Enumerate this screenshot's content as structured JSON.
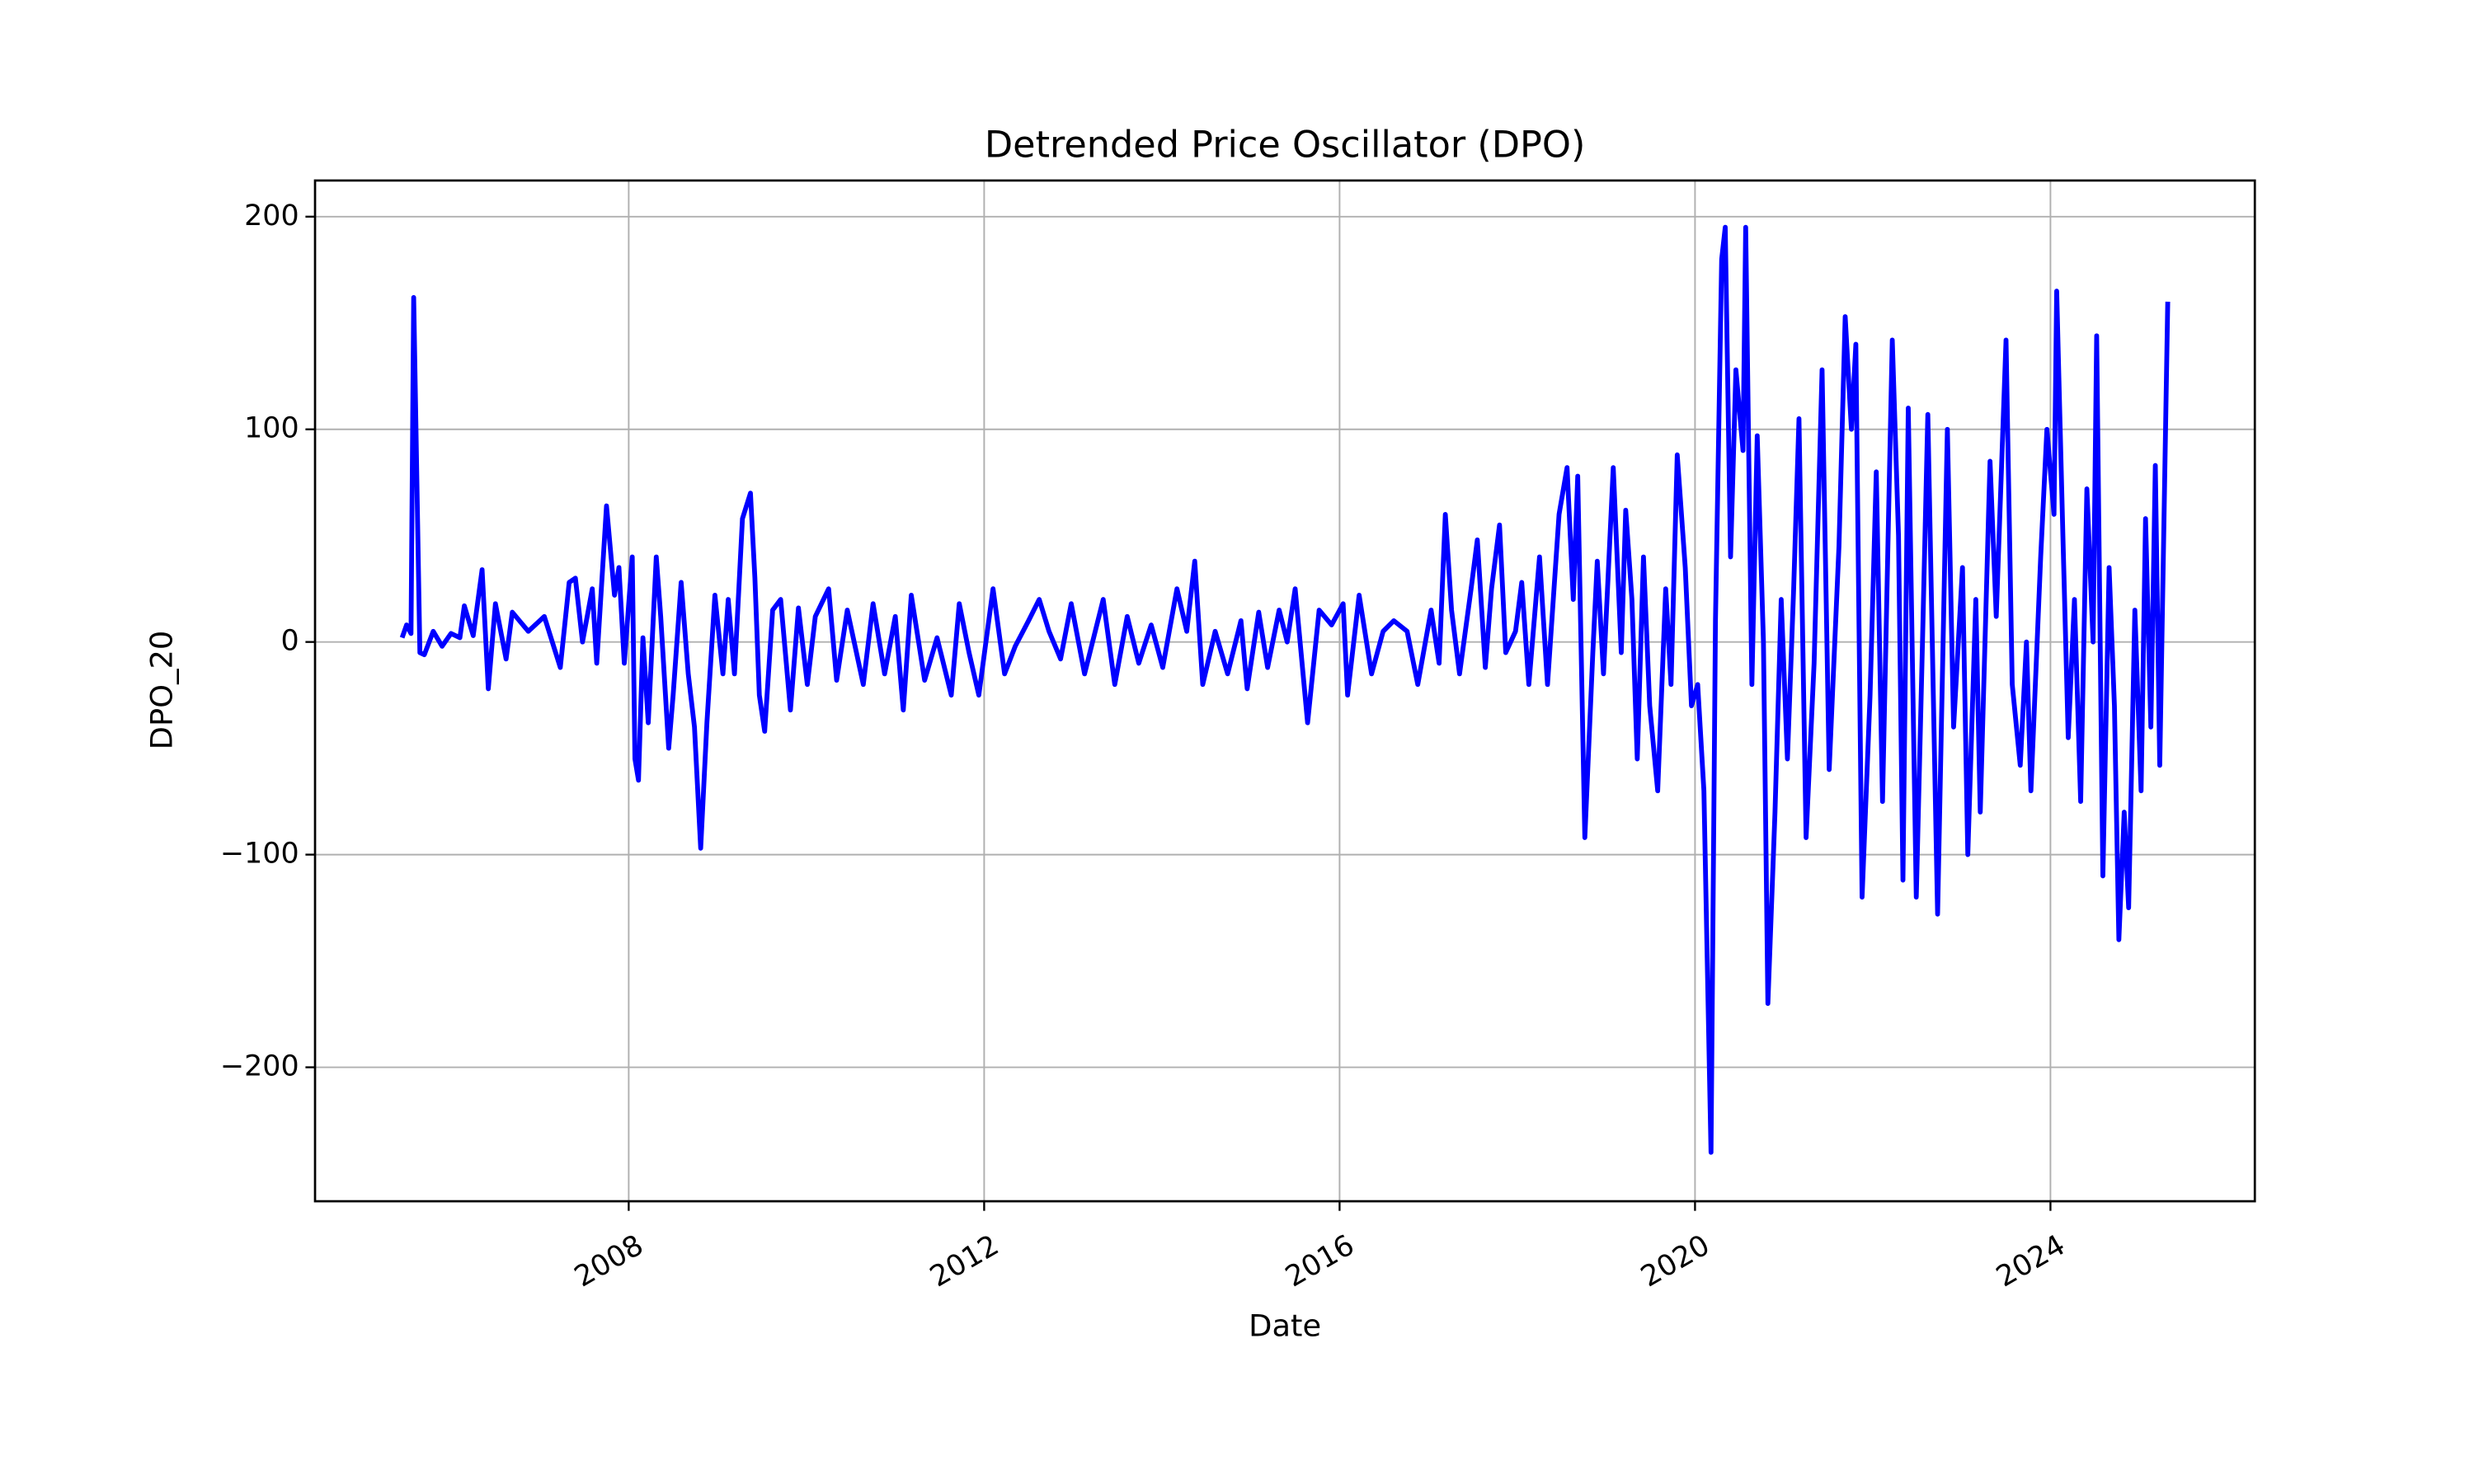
{
  "chart_data": {
    "type": "line",
    "title": "Detrended Price Oscillator (DPO)",
    "xlabel": "Date",
    "ylabel": "DPO_20",
    "xlim": [
      2004.47,
      2026.3
    ],
    "ylim": [
      -263,
      217
    ],
    "xticks": [
      2008,
      2012,
      2016,
      2020,
      2024
    ],
    "yticks": [
      {
        "value": -200,
        "label": "−200"
      },
      {
        "value": -100,
        "label": "−100"
      },
      0,
      100,
      200
    ],
    "grid": true,
    "series": [
      {
        "name": "DPO_20",
        "color": "#0000ff",
        "x": [
          2005.45,
          2005.5,
          2005.55,
          2005.58,
          2005.65,
          2005.7,
          2005.8,
          2005.9,
          2006.0,
          2006.1,
          2006.15,
          2006.25,
          2006.35,
          2006.42,
          2006.5,
          2006.62,
          2006.69,
          2006.87,
          2007.05,
          2007.23,
          2007.33,
          2007.4,
          2007.48,
          2007.59,
          2007.64,
          2007.75,
          2007.84,
          2007.89,
          2007.95,
          2008.04,
          2008.07,
          2008.11,
          2008.16,
          2008.22,
          2008.31,
          2008.36,
          2008.45,
          2008.5,
          2008.59,
          2008.67,
          2008.74,
          2008.81,
          2008.88,
          2008.97,
          2009.06,
          2009.12,
          2009.19,
          2009.28,
          2009.37,
          2009.42,
          2009.47,
          2009.53,
          2009.62,
          2009.71,
          2009.82,
          2009.91,
          2010.01,
          2010.1,
          2010.25,
          2010.34,
          2010.46,
          2010.64,
          2010.75,
          2010.88,
          2011.0,
          2011.09,
          2011.18,
          2011.33,
          2011.47,
          2011.63,
          2011.72,
          2011.83,
          2011.94,
          2012.1,
          2012.23,
          2012.35,
          2012.5,
          2012.62,
          2012.73,
          2012.86,
          2012.98,
          2013.13,
          2013.34,
          2013.47,
          2013.61,
          2013.74,
          2013.88,
          2014.01,
          2014.17,
          2014.28,
          2014.37,
          2014.46,
          2014.6,
          2014.74,
          2014.89,
          2014.96,
          2015.09,
          2015.19,
          2015.32,
          2015.41,
          2015.5,
          2015.64,
          2015.77,
          2015.91,
          2016.04,
          2016.09,
          2016.22,
          2016.36,
          2016.49,
          2016.61,
          2016.76,
          2016.88,
          2017.03,
          2017.12,
          2017.19,
          2017.26,
          2017.35,
          2017.48,
          2017.55,
          2017.64,
          2017.71,
          2017.8,
          2017.87,
          2017.98,
          2018.05,
          2018.13,
          2018.25,
          2018.34,
          2018.47,
          2018.56,
          2018.63,
          2018.68,
          2018.76,
          2018.85,
          2018.9,
          2018.97,
          2019.08,
          2019.17,
          2019.22,
          2019.29,
          2019.35,
          2019.42,
          2019.49,
          2019.58,
          2019.67,
          2019.73,
          2019.8,
          2019.89,
          2019.96,
          2020.03,
          2020.1,
          2020.18,
          2020.23,
          2020.3,
          2020.34,
          2020.4,
          2020.46,
          2020.54,
          2020.57,
          2020.64,
          2020.7,
          2020.77,
          2020.82,
          2020.9,
          2020.97,
          2021.04,
          2021.11,
          2021.17,
          2021.25,
          2021.34,
          2021.43,
          2021.51,
          2021.62,
          2021.69,
          2021.76,
          2021.81,
          2021.88,
          2021.97,
          2022.04,
          2022.11,
          2022.22,
          2022.29,
          2022.34,
          2022.4,
          2022.49,
          2022.56,
          2022.62,
          2022.73,
          2022.84,
          2022.91,
          2023.01,
          2023.07,
          2023.16,
          2023.21,
          2023.32,
          2023.39,
          2023.5,
          2023.57,
          2023.66,
          2023.73,
          2023.78,
          2023.89,
          2023.96,
          2024.04,
          2024.07,
          2024.14,
          2024.2,
          2024.27,
          2024.34,
          2024.41,
          2024.48,
          2024.52,
          2024.59,
          2024.66,
          2024.72,
          2024.77,
          2024.83,
          2024.88,
          2024.95,
          2025.02,
          2025.07,
          2025.13,
          2025.18,
          2025.23,
          2025.32
        ],
        "values": [
          2,
          8,
          4,
          162,
          -5,
          -6,
          5,
          -2,
          4,
          2,
          17,
          3,
          34,
          -22,
          18,
          -8,
          14,
          5,
          12,
          -12,
          28,
          30,
          0,
          25,
          -10,
          64,
          22,
          35,
          -10,
          40,
          -55,
          -65,
          2,
          -38,
          40,
          12,
          -50,
          -25,
          28,
          -15,
          -40,
          -97,
          -38,
          22,
          -15,
          20,
          -15,
          58,
          70,
          30,
          -25,
          -42,
          15,
          20,
          -32,
          16,
          -20,
          12,
          25,
          -18,
          15,
          -20,
          18,
          -15,
          12,
          -32,
          22,
          -18,
          2,
          -25,
          18,
          -5,
          -25,
          25,
          -15,
          -2,
          10,
          20,
          5,
          -8,
          18,
          -15,
          20,
          -20,
          12,
          -10,
          8,
          -12,
          25,
          5,
          38,
          -20,
          5,
          -15,
          10,
          -22,
          14,
          -12,
          15,
          0,
          25,
          -38,
          15,
          8,
          18,
          -25,
          22,
          -15,
          5,
          10,
          5,
          -20,
          15,
          -10,
          60,
          15,
          -15,
          25,
          48,
          -12,
          25,
          55,
          -5,
          5,
          28,
          -20,
          40,
          -20,
          60,
          82,
          20,
          78,
          -92,
          -5,
          38,
          -15,
          82,
          -5,
          62,
          20,
          -55,
          40,
          -30,
          -70,
          25,
          -20,
          88,
          35,
          -30,
          -20,
          -70,
          -240,
          10,
          180,
          195,
          40,
          128,
          90,
          195,
          -20,
          97,
          0,
          -170,
          -80,
          20,
          -55,
          25,
          105,
          -92,
          -10,
          128,
          -60,
          45,
          153,
          100,
          140,
          -120,
          -25,
          80,
          -75,
          142,
          50,
          -112,
          110,
          -120,
          0,
          107,
          -128,
          100,
          -40,
          35,
          -100,
          20,
          -80,
          85,
          12,
          142,
          -20,
          -58,
          0,
          -70,
          40,
          100,
          60,
          165,
          50,
          -45,
          20,
          -75,
          72,
          0,
          144,
          -110,
          35,
          -30,
          -140,
          -80,
          -125,
          15,
          -70,
          58,
          -40,
          83,
          -58,
          160
        ]
      }
    ]
  }
}
